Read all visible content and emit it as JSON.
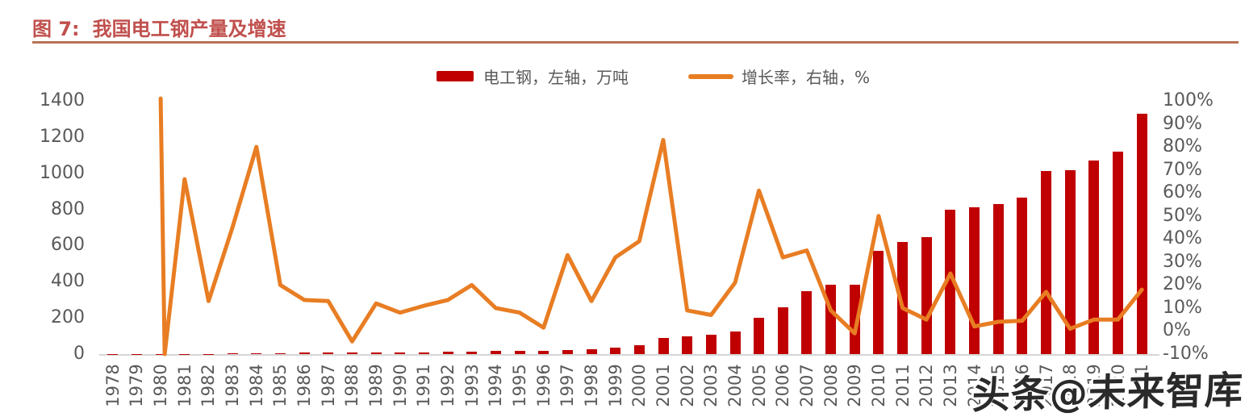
{
  "figure": {
    "title_prefix": "图 7:",
    "title_text": "我国电工钢产量及增速"
  },
  "legend": {
    "position": "top",
    "items": [
      {
        "label": "电工钢，左轴，万吨",
        "marker": "bar",
        "color": "#c00000"
      },
      {
        "label": "增长率，右轴，%",
        "marker": "line",
        "color": "#e87d23"
      }
    ]
  },
  "watermark": {
    "text": "头条@未来智库"
  },
  "colors": {
    "bar": "#c00000",
    "line": "#e87d23",
    "title": "#c0504d",
    "title_rule": "#b87355",
    "axis_text": "#595959",
    "axis_line": "#d6d6d6",
    "watermark_text": "#2a2a2a"
  },
  "chart_data": {
    "type": "bar+line",
    "title": "我国电工钢产量及增速",
    "gridlines": false,
    "categories": [
      1978,
      1979,
      1980,
      1981,
      1982,
      1983,
      1984,
      1985,
      1986,
      1987,
      1988,
      1989,
      1990,
      1991,
      1992,
      1993,
      1994,
      1995,
      1996,
      1997,
      1998,
      1999,
      2000,
      2001,
      2002,
      2003,
      2004,
      2005,
      2006,
      2007,
      2008,
      2009,
      2010,
      2011,
      2012,
      2013,
      2014,
      2015,
      2016,
      2017,
      2018,
      2019,
      2020,
      2021
    ],
    "series": [
      {
        "name": "电工钢，左轴，万吨",
        "type": "bar",
        "axis": "left",
        "unit": "万吨",
        "values": [
          0.5,
          0.6,
          1.2,
          1.9,
          2.1,
          3.1,
          5.5,
          6.6,
          7.5,
          8.5,
          8.1,
          9.1,
          9.8,
          10.8,
          12.3,
          14.8,
          16.3,
          17.7,
          18,
          24,
          27,
          36,
          50,
          90,
          98,
          105,
          125,
          200,
          260,
          350,
          385,
          383,
          570,
          620,
          645,
          800,
          810,
          830,
          865,
          1010,
          1015,
          1070,
          1120,
          1330
        ]
      },
      {
        "name": "增长率，右轴，%",
        "type": "line",
        "axis": "right",
        "unit": "%",
        "values": [
          null,
          null,
          101,
          66,
          13,
          45,
          80,
          20,
          13.5,
          13,
          -4.5,
          12,
          8,
          11,
          13.5,
          20,
          10,
          8,
          1.5,
          33,
          13,
          32,
          39,
          83,
          9,
          7,
          21,
          61,
          32,
          35,
          9,
          -1,
          50,
          10,
          5,
          25,
          2,
          4,
          4.5,
          17,
          1,
          5,
          5,
          18
        ]
      }
    ],
    "spike_dip": {
      "after_year": 1980,
      "value": -10
    },
    "left_axis": {
      "min": 0,
      "max": 1400,
      "ticks": [
        0,
        200,
        400,
        600,
        800,
        1000,
        1200,
        1400
      ],
      "suffix": ""
    },
    "right_axis": {
      "min": -10,
      "max": 100,
      "ticks": [
        -10,
        0,
        10,
        20,
        30,
        40,
        50,
        60,
        70,
        80,
        90,
        100
      ],
      "suffix": "%"
    }
  }
}
